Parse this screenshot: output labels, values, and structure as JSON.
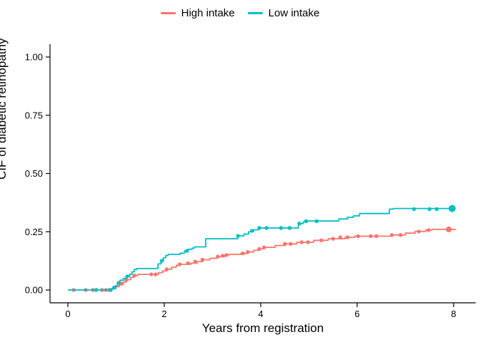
{
  "chart_data": {
    "type": "line",
    "subtype": "step-cumulative-incidence",
    "title": "",
    "xlabel": "Years from registration",
    "ylabel": "CIF of diabetic retinopathy",
    "xlim": [
      0,
      8
    ],
    "ylim": [
      0,
      1
    ],
    "xticks": [
      0,
      2,
      4,
      6,
      8
    ],
    "yticks": [
      {
        "value": 0.0,
        "label": "0.00"
      },
      {
        "value": 0.25,
        "label": "0.25"
      },
      {
        "value": 0.5,
        "label": "0.50"
      },
      {
        "value": 0.75,
        "label": "0.75"
      },
      {
        "value": 1.0,
        "label": "1.00"
      }
    ],
    "grid": false,
    "legend_position": "top",
    "axis_color": "#000000",
    "series": [
      {
        "name": "High intake",
        "color": "#F8766D",
        "end_year": 8.05,
        "end_dot": {
          "year": 7.9,
          "cif": 0.26,
          "r": 4
        },
        "steps": [
          [
            0,
            0
          ],
          [
            0.92,
            0.006
          ],
          [
            1.0,
            0.014
          ],
          [
            1.07,
            0.024
          ],
          [
            1.15,
            0.035
          ],
          [
            1.22,
            0.044
          ],
          [
            1.3,
            0.054
          ],
          [
            1.37,
            0.062
          ],
          [
            1.45,
            0.067
          ],
          [
            1.88,
            0.075
          ],
          [
            1.97,
            0.082
          ],
          [
            2.05,
            0.089
          ],
          [
            2.15,
            0.098
          ],
          [
            2.25,
            0.106
          ],
          [
            2.32,
            0.11
          ],
          [
            2.55,
            0.115
          ],
          [
            2.68,
            0.122
          ],
          [
            2.8,
            0.13
          ],
          [
            2.95,
            0.136
          ],
          [
            3.1,
            0.143
          ],
          [
            3.25,
            0.15
          ],
          [
            3.35,
            0.153
          ],
          [
            3.58,
            0.157
          ],
          [
            3.72,
            0.163
          ],
          [
            3.85,
            0.17
          ],
          [
            3.95,
            0.176
          ],
          [
            4.05,
            0.183
          ],
          [
            4.3,
            0.191
          ],
          [
            4.5,
            0.198
          ],
          [
            4.75,
            0.205
          ],
          [
            5.1,
            0.213
          ],
          [
            5.4,
            0.22
          ],
          [
            5.75,
            0.226
          ],
          [
            5.95,
            0.231
          ],
          [
            6.7,
            0.236
          ],
          [
            7.0,
            0.244
          ],
          [
            7.2,
            0.251
          ],
          [
            7.42,
            0.257
          ],
          [
            7.55,
            0.26
          ]
        ],
        "censor_marks": [
          [
            0.12,
            0
          ],
          [
            0.37,
            0
          ],
          [
            0.52,
            0
          ],
          [
            0.71,
            0
          ],
          [
            0.79,
            0
          ],
          [
            0.86,
            0
          ],
          [
            1.11,
            0.027
          ],
          [
            1.21,
            0.044
          ],
          [
            1.38,
            0.062
          ],
          [
            1.73,
            0.067
          ],
          [
            1.82,
            0.067
          ],
          [
            2.05,
            0.089
          ],
          [
            2.32,
            0.11
          ],
          [
            2.49,
            0.115
          ],
          [
            2.64,
            0.122
          ],
          [
            2.79,
            0.13
          ],
          [
            3.11,
            0.143
          ],
          [
            3.21,
            0.147
          ],
          [
            3.29,
            0.15
          ],
          [
            3.63,
            0.157
          ],
          [
            3.73,
            0.163
          ],
          [
            3.97,
            0.176
          ],
          [
            4.07,
            0.183
          ],
          [
            4.5,
            0.198
          ],
          [
            4.62,
            0.198
          ],
          [
            4.85,
            0.205
          ],
          [
            4.98,
            0.205
          ],
          [
            5.26,
            0.213
          ],
          [
            5.5,
            0.22
          ],
          [
            5.65,
            0.226
          ],
          [
            5.8,
            0.226
          ],
          [
            6.02,
            0.231
          ],
          [
            6.28,
            0.231
          ],
          [
            6.4,
            0.231
          ],
          [
            6.72,
            0.236
          ],
          [
            6.9,
            0.236
          ],
          [
            7.28,
            0.251
          ],
          [
            7.48,
            0.257
          ],
          [
            7.88,
            0.26
          ]
        ]
      },
      {
        "name": "Low intake",
        "color": "#00BFC4",
        "end_year": 7.97,
        "end_dot": {
          "year": 7.97,
          "cif": 0.35,
          "r": 5
        },
        "steps": [
          [
            0,
            0
          ],
          [
            0.88,
            0.004
          ],
          [
            0.93,
            0.01
          ],
          [
            0.98,
            0.018
          ],
          [
            1.03,
            0.03
          ],
          [
            1.08,
            0.042
          ],
          [
            1.15,
            0.05
          ],
          [
            1.22,
            0.058
          ],
          [
            1.28,
            0.068
          ],
          [
            1.33,
            0.078
          ],
          [
            1.38,
            0.088
          ],
          [
            1.43,
            0.092
          ],
          [
            1.87,
            0.112
          ],
          [
            1.93,
            0.125
          ],
          [
            1.98,
            0.138
          ],
          [
            2.03,
            0.148
          ],
          [
            2.08,
            0.153
          ],
          [
            2.33,
            0.158
          ],
          [
            2.42,
            0.168
          ],
          [
            2.5,
            0.175
          ],
          [
            2.58,
            0.18
          ],
          [
            2.63,
            0.185
          ],
          [
            2.86,
            0.22
          ],
          [
            3.52,
            0.232
          ],
          [
            3.65,
            0.24
          ],
          [
            3.75,
            0.25
          ],
          [
            3.85,
            0.258
          ],
          [
            3.95,
            0.266
          ],
          [
            4.78,
            0.285
          ],
          [
            4.88,
            0.292
          ],
          [
            4.95,
            0.296
          ],
          [
            5.62,
            0.305
          ],
          [
            5.8,
            0.312
          ],
          [
            5.92,
            0.318
          ],
          [
            6.05,
            0.328
          ],
          [
            6.67,
            0.347
          ],
          [
            6.75,
            0.35
          ]
        ],
        "censor_marks": [
          [
            0.59,
            0
          ],
          [
            0.89,
            0
          ],
          [
            0.96,
            0.01
          ],
          [
            1.05,
            0.03
          ],
          [
            1.23,
            0.058
          ],
          [
            1.95,
            0.125
          ],
          [
            2.47,
            0.168
          ],
          [
            3.53,
            0.232
          ],
          [
            3.82,
            0.254
          ],
          [
            3.97,
            0.266
          ],
          [
            4.12,
            0.266
          ],
          [
            4.42,
            0.266
          ],
          [
            4.6,
            0.266
          ],
          [
            4.8,
            0.285
          ],
          [
            4.94,
            0.295
          ],
          [
            5.16,
            0.295
          ],
          [
            7.18,
            0.347
          ],
          [
            7.5,
            0.347
          ],
          [
            7.65,
            0.347
          ]
        ]
      }
    ]
  }
}
